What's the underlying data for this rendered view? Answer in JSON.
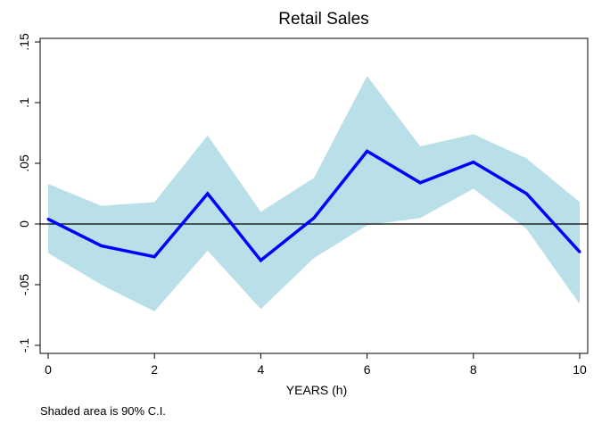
{
  "chart_data": {
    "type": "line",
    "title": "Retail Sales",
    "xlabel": "YEARS (h)",
    "ylabel": "",
    "note": "Shaded area is 90% C.I.",
    "x": [
      0,
      1,
      2,
      3,
      4,
      5,
      6,
      7,
      8,
      9,
      10
    ],
    "series": [
      {
        "values": [
          0.004,
          -0.018,
          -0.027,
          0.025,
          -0.03,
          0.005,
          0.06,
          0.034,
          0.051,
          0.025,
          -0.023
        ],
        "color": "#0000ff"
      }
    ],
    "confidence_band": {
      "upper": [
        0.033,
        0.015,
        0.018,
        0.073,
        0.01,
        0.038,
        0.122,
        0.064,
        0.074,
        0.054,
        0.018
      ],
      "lower": [
        -0.024,
        -0.05,
        -0.072,
        -0.022,
        -0.07,
        -0.028,
        -0.001,
        0.005,
        0.029,
        -0.004,
        -0.066
      ],
      "color": "#b9dfe8"
    },
    "reference_line": {
      "y": 0,
      "color": "#000000"
    },
    "xlim": [
      0,
      10
    ],
    "ylim": [
      -0.1,
      0.15
    ],
    "xticks": [
      0,
      2,
      4,
      6,
      8,
      10
    ],
    "yticks": [
      -0.1,
      -0.05,
      0,
      0.05,
      0.1,
      0.15
    ],
    "xtick_labels": [
      "0",
      "2",
      "4",
      "6",
      "8",
      "10"
    ],
    "ytick_labels": [
      "-.1",
      "-.05",
      "0",
      ".05",
      ".1",
      ".15"
    ],
    "grid": false,
    "legend": "none"
  }
}
